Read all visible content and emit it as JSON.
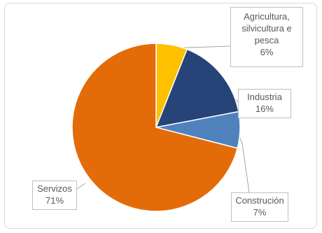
{
  "chart_data": {
    "type": "pie",
    "slices": [
      {
        "label": "Agricultura,\nsilvicultura e\npesca",
        "value": 6,
        "pct_label": "6%",
        "color": "#ffc000"
      },
      {
        "label": "Industria",
        "value": 16,
        "pct_label": "16%",
        "color": "#264478"
      },
      {
        "label": "Construción",
        "value": 7,
        "pct_label": "7%",
        "color": "#4f81bd"
      },
      {
        "label": "Servizos",
        "value": 71,
        "pct_label": "71%",
        "color": "#e36c09"
      }
    ],
    "start_angle_deg": 0,
    "direction": "clockwise",
    "border_color": "#ffffff",
    "leader_line_color": "#a6a6a6"
  }
}
